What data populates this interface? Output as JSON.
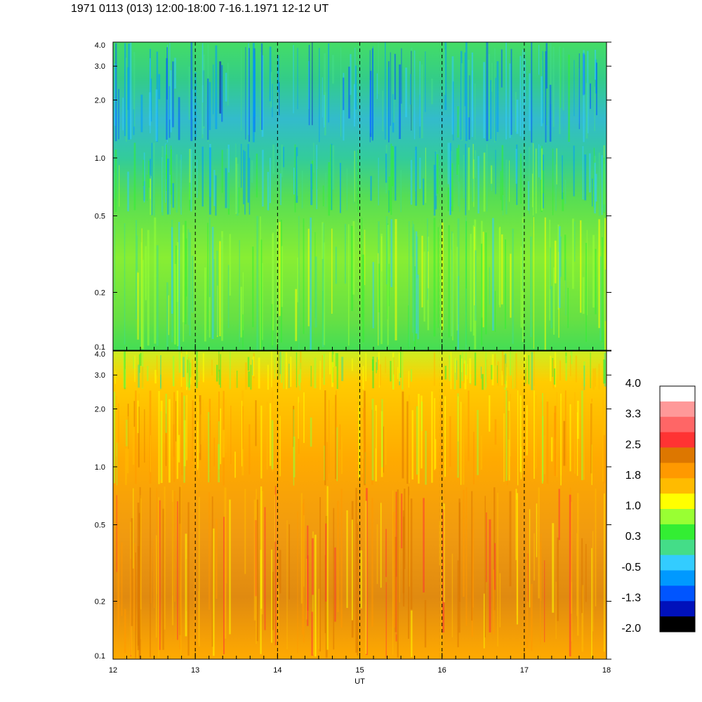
{
  "title": "1971 0113 (013) 12:00-18:00 7-16.1.1971  12-12 UT",
  "chart_data": [
    {
      "type": "heatmap",
      "panel": "upper",
      "x": {
        "label": "",
        "range": [
          12,
          18
        ],
        "ticks": [
          "12",
          "13",
          "14",
          "15",
          "16",
          "17",
          "18"
        ]
      },
      "y": {
        "label": "",
        "range": [
          0.1,
          4.0
        ],
        "scale": "log",
        "ticks": [
          {
            "v": 4.0,
            "label": "4.0"
          },
          {
            "v": 3.0,
            "label": "3.0"
          },
          {
            "v": 2.0,
            "label": "2.0"
          },
          {
            "v": 1.0,
            "label": "1.0"
          },
          {
            "v": 0.5,
            "label": "0.5"
          },
          {
            "v": 0.2,
            "label": "0.2"
          },
          {
            "v": 0.1,
            "label": "0.1"
          }
        ]
      },
      "dashed_hour_lines": [
        13,
        14,
        15,
        16,
        17
      ],
      "value_bands": [
        {
          "y_range": [
            1.2,
            4.0
          ],
          "typical_value": -0.5
        },
        {
          "y_range": [
            0.5,
            1.2
          ],
          "typical_value": 0.0
        },
        {
          "y_range": [
            0.1,
            0.5
          ],
          "typical_value": 0.5
        }
      ]
    },
    {
      "type": "heatmap",
      "panel": "lower",
      "x": {
        "label": "UT",
        "range": [
          12,
          18
        ],
        "ticks": [
          "12",
          "13",
          "14",
          "15",
          "16",
          "17",
          "18"
        ]
      },
      "y": {
        "label": "",
        "range": [
          0.1,
          4.0
        ],
        "scale": "log",
        "ticks": [
          {
            "v": 4.0,
            "label": "4.0"
          },
          {
            "v": 3.0,
            "label": "3.0"
          },
          {
            "v": 2.0,
            "label": "2.0"
          },
          {
            "v": 1.0,
            "label": "1.0"
          },
          {
            "v": 0.5,
            "label": "0.5"
          },
          {
            "v": 0.2,
            "label": "0.2"
          },
          {
            "v": 0.1,
            "label": "0.1"
          }
        ]
      },
      "dashed_hour_lines": [
        13,
        14,
        15,
        16,
        17
      ],
      "value_bands": [
        {
          "y_range": [
            2.5,
            4.0
          ],
          "typical_value": 0.9
        },
        {
          "y_range": [
            0.8,
            2.5
          ],
          "typical_value": 1.5
        },
        {
          "y_range": [
            0.1,
            0.8
          ],
          "typical_value": 1.9
        }
      ]
    },
    {
      "type": "colorbar",
      "range": [
        -2.0,
        4.0
      ],
      "labels": [
        "4.0",
        "3.3",
        "2.5",
        "1.8",
        "1.0",
        "0.3",
        "-0.5",
        "-1.3",
        "-2.0"
      ],
      "colors": [
        "#ffffff",
        "#ff9999",
        "#ff6666",
        "#ff3333",
        "#dd7700",
        "#ff9900",
        "#ffbb00",
        "#ffff00",
        "#99ff33",
        "#33ee33",
        "#44dd88",
        "#33ccff",
        "#0099ff",
        "#0055ff",
        "#0011bb",
        "#000000"
      ]
    }
  ]
}
